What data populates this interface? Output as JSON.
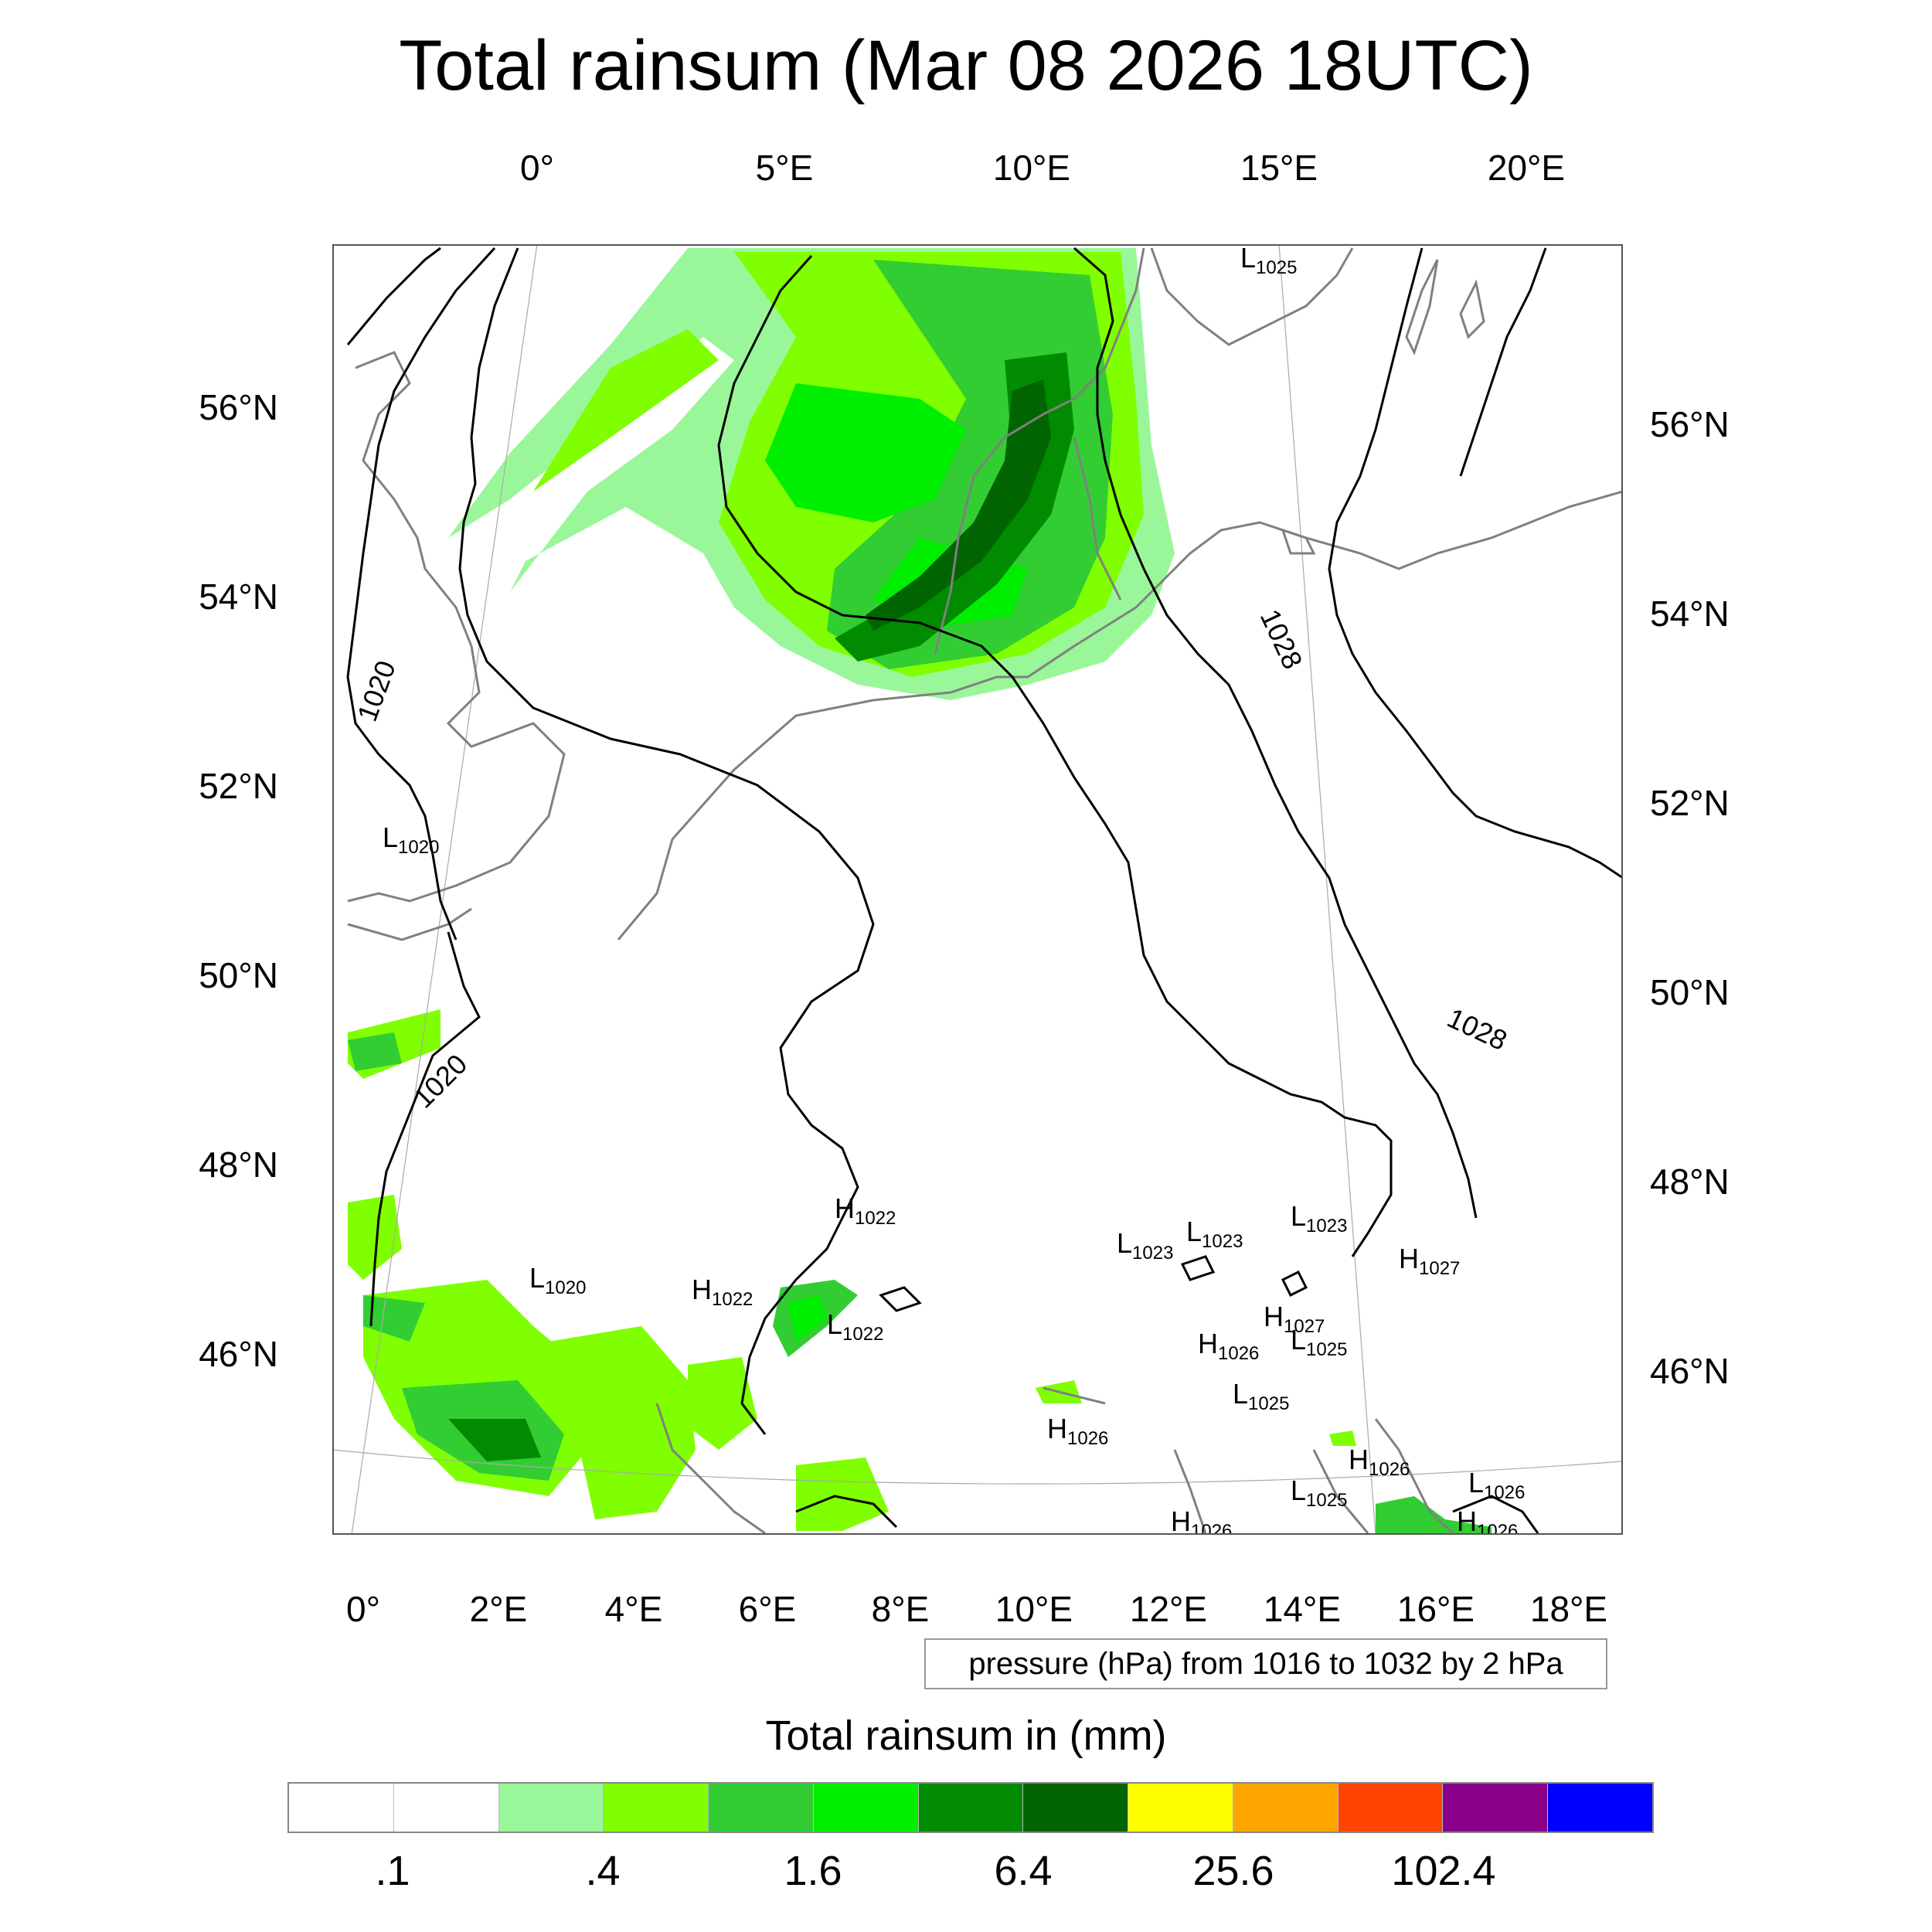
{
  "title": "Total rainsum (Mar 08 2026 18UTC)",
  "top_axis_labels": [
    "0°",
    "5°E",
    "10°E",
    "15°E",
    "20°E"
  ],
  "bottom_axis_labels": [
    "0°",
    "2°E",
    "4°E",
    "6°E",
    "8°E",
    "10°E",
    "12°E",
    "14°E",
    "16°E",
    "18°E"
  ],
  "left_axis_labels": [
    "56°N",
    "54°N",
    "52°N",
    "50°N",
    "48°N",
    "46°N"
  ],
  "right_axis_labels": [
    "56°N",
    "54°N",
    "52°N",
    "50°N",
    "48°N",
    "46°N"
  ],
  "contour_info": "pressure (hPa) from 1016 to 1032 by 2 hPa",
  "isobar_labels": [
    "1020",
    "1020",
    "1028",
    "1028"
  ],
  "pressure_centers": [
    {
      "type": "L",
      "value": "1025"
    },
    {
      "type": "L",
      "value": "1020"
    },
    {
      "type": "H",
      "value": "1022"
    },
    {
      "type": "L",
      "value": "1023"
    },
    {
      "type": "L",
      "value": "1023"
    },
    {
      "type": "L",
      "value": "1023"
    },
    {
      "type": "L",
      "value": "1020"
    },
    {
      "type": "H",
      "value": "1022"
    },
    {
      "type": "H",
      "value": "1027"
    },
    {
      "type": "L",
      "value": "1022"
    },
    {
      "type": "H",
      "value": "1027"
    },
    {
      "type": "H",
      "value": "1026"
    },
    {
      "type": "L",
      "value": "1025"
    },
    {
      "type": "L",
      "value": "1025"
    },
    {
      "type": "H",
      "value": "1026"
    },
    {
      "type": "H",
      "value": "1026"
    },
    {
      "type": "L",
      "value": "1025"
    },
    {
      "type": "L",
      "value": "1026"
    },
    {
      "type": "H",
      "value": "1026"
    },
    {
      "type": "H",
      "value": "1026"
    }
  ],
  "colorbar": {
    "title": "Total rainsum in (mm)",
    "colors": [
      "#ffffff",
      "#ffffff",
      "#99f799",
      "#7fff00",
      "#32cd32",
      "#00ee00",
      "#008b00",
      "#006400",
      "#ffff00",
      "#ffa500",
      "#ff4500",
      "#8b008b",
      "#0000ff"
    ],
    "labels": [
      ".1",
      ".4",
      "1.6",
      "6.4",
      "25.6",
      "102.4"
    ]
  },
  "colors": {
    "coastline": "#808080",
    "isobar": "#000000",
    "grid": "#aaaaaa"
  }
}
